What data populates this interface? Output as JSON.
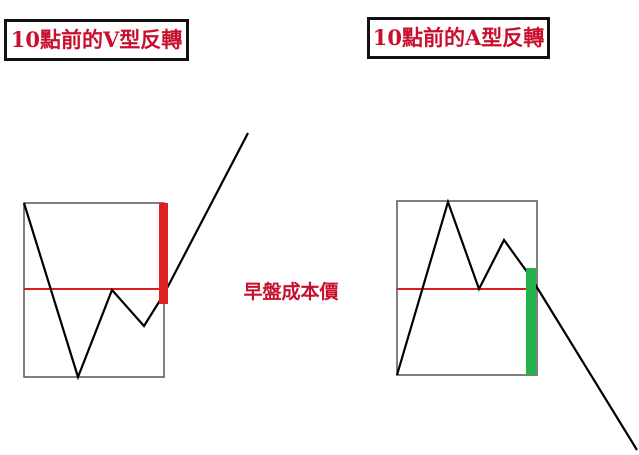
{
  "left_panel": {
    "title": "10點前的V型反轉"
  },
  "right_panel": {
    "title": "10點前的A型反轉"
  },
  "center_label": "早盤成本價",
  "colors": {
    "title_text": "#c8102e",
    "cost_line": "#d81e1e",
    "bullish_bar": "#e02020",
    "bearish_bar": "#22b24c",
    "price_line": "#000000",
    "box_border": "#555555"
  }
}
